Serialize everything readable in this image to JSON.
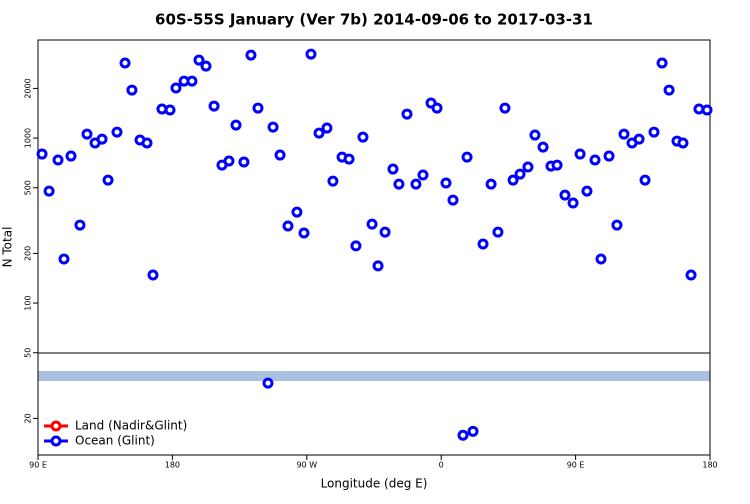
{
  "chart_data": {
    "type": "scatter",
    "title": "60S-55S January (Ver 7b)   2014-09-06 to 2017-03-31",
    "x_label": "Longitude (deg E)",
    "y_label": "N Total",
    "log_y": true,
    "legend": "bottom-left",
    "xlim": [
      90,
      540
    ],
    "ylim": [
      12,
      3930
    ],
    "xticks": [
      {
        "value": 90,
        "label": "90 E"
      },
      180,
      {
        "value": 270,
        "label": "90 W"
      },
      {
        "value": 360,
        "label": "0"
      },
      {
        "value": 450,
        "label": "90 E"
      },
      {
        "value": 540,
        "label": "180"
      }
    ],
    "yticks": [
      20,
      50,
      100,
      200,
      500,
      1000,
      2000
    ],
    "series": [
      {
        "name": "Land (Nadir&Glint)",
        "color": "#ff0000",
        "x": [],
        "values": []
      },
      {
        "name": "Ocean (Glint)",
        "color": "#0000ff",
        "x": [
          92.7,
          97.4,
          103.4,
          107.4,
          112.1,
          118.1,
          122.8,
          128.2,
          132.9,
          136.9,
          142.9,
          148.3,
          152.9,
          158.3,
          163.0,
          167.0,
          173.0,
          178.4,
          182.4,
          187.8,
          193.1,
          197.8,
          202.5,
          207.9,
          213.2,
          217.9,
          222.6,
          227.9,
          232.6,
          237.3,
          244.0,
          247.4,
          252.1,
          257.4,
          263.4,
          268.1,
          272.8,
          278.2,
          283.5,
          287.5,
          293.6,
          298.3,
          302.9,
          307.6,
          313.7,
          317.7,
          322.4,
          327.7,
          331.7,
          337.1,
          343.1,
          347.8,
          353.2,
          357.2,
          363.2,
          367.9,
          374.6,
          377.3,
          381.3,
          388.0,
          393.4,
          398.0,
          402.7,
          408.1,
          412.8,
          418.1,
          422.8,
          428.2,
          433.5,
          437.6,
          442.9,
          448.3,
          453.0,
          457.6,
          463.0,
          467.0,
          472.4,
          477.7,
          482.4,
          487.8,
          492.5,
          496.5,
          502.5,
          507.9,
          512.6,
          517.9,
          521.9,
          527.3,
          532.6,
          538.0
        ],
        "values": [
          800,
          477,
          736,
          185,
          778,
          297,
          1057,
          933,
          986,
          556,
          1087,
          2850,
          1954,
          973,
          933,
          148,
          1500,
          1479,
          2010,
          2214,
          2214,
          2970,
          2731,
          1563,
          686,
          726,
          1199,
          716,
          3184,
          1520,
          32.7,
          1166,
          789,
          293,
          356,
          266,
          3229,
          1072,
          1150,
          548,
          767,
          746,
          222,
          1014,
          301,
          168,
          269,
          649,
          526,
          1398,
          526,
          597,
          1630,
          1520,
          534,
          421,
          15.8,
          767,
          16.7,
          228,
          526,
          269,
          1520,
          556,
          605,
          668,
          1043,
          882,
          676,
          686,
          451,
          404,
          800,
          477,
          736,
          185,
          778,
          297,
          1057,
          933,
          986,
          556,
          1087,
          2850,
          1954,
          959,
          933,
          148,
          1500,
          1479
        ]
      }
    ]
  }
}
